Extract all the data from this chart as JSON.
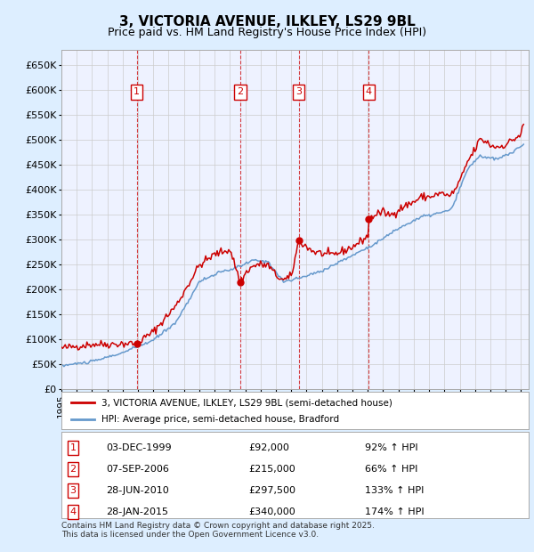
{
  "title": "3, VICTORIA AVENUE, ILKLEY, LS29 9BL",
  "subtitle": "Price paid vs. HM Land Registry's House Price Index (HPI)",
  "property_label": "3, VICTORIA AVENUE, ILKLEY, LS29 9BL (semi-detached house)",
  "hpi_label": "HPI: Average price, semi-detached house, Bradford",
  "ylabel_ticks": [
    "£0",
    "£50K",
    "£100K",
    "£150K",
    "£200K",
    "£250K",
    "£300K",
    "£350K",
    "£400K",
    "£450K",
    "£500K",
    "£550K",
    "£600K",
    "£650K"
  ],
  "ytick_values": [
    0,
    50000,
    100000,
    150000,
    200000,
    250000,
    300000,
    350000,
    400000,
    450000,
    500000,
    550000,
    600000,
    650000
  ],
  "ylim": [
    0,
    680000
  ],
  "xlim_start": 1995.0,
  "xlim_end": 2025.5,
  "sale_dates_num": [
    1999.92,
    2006.68,
    2010.49,
    2015.07
  ],
  "sale_prices": [
    92000,
    215000,
    297500,
    340000
  ],
  "sale_labels": [
    "1",
    "2",
    "3",
    "4"
  ],
  "sale_info": [
    {
      "num": "1",
      "date": "03-DEC-1999",
      "price": "£92,000",
      "hpi": "92% ↑ HPI"
    },
    {
      "num": "2",
      "date": "07-SEP-2006",
      "price": "£215,000",
      "hpi": "66% ↑ HPI"
    },
    {
      "num": "3",
      "date": "28-JUN-2010",
      "price": "£297,500",
      "hpi": "133% ↑ HPI"
    },
    {
      "num": "4",
      "date": "28-JAN-2015",
      "price": "£340,000",
      "hpi": "174% ↑ HPI"
    }
  ],
  "property_color": "#cc0000",
  "hpi_color": "#6699cc",
  "background_color": "#ddeeff",
  "plot_bg_color": "#eef2ff",
  "footer": "Contains HM Land Registry data © Crown copyright and database right 2025.\nThis data is licensed under the Open Government Licence v3.0."
}
